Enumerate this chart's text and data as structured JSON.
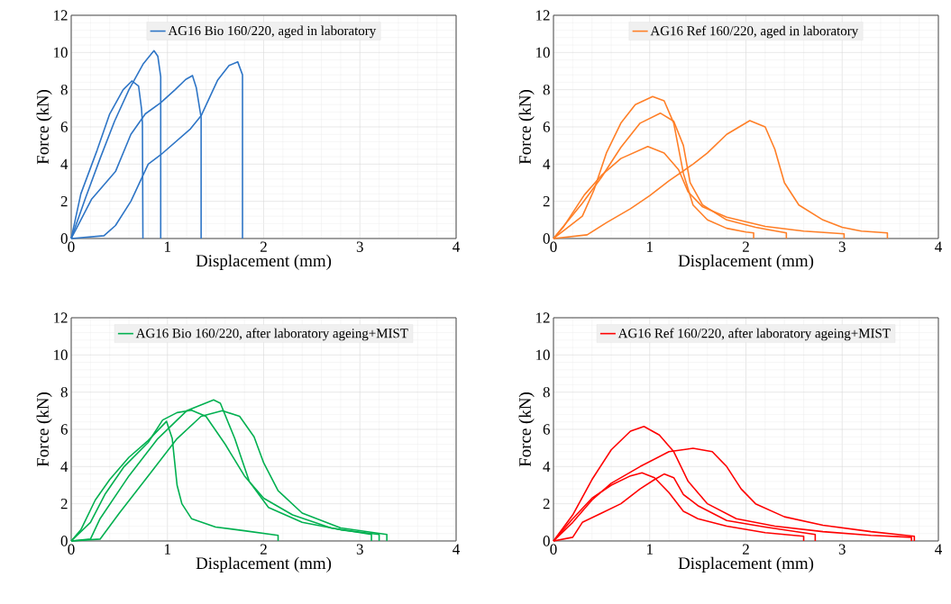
{
  "chart_data": [
    {
      "type": "line",
      "xlabel": "Displacement (mm)",
      "ylabel": "Force (kN)",
      "xlim": [
        0,
        4
      ],
      "ylim": [
        0,
        12
      ],
      "xticks": [
        0,
        1,
        2,
        3,
        4
      ],
      "yticks": [
        0,
        2,
        4,
        6,
        8,
        10,
        12
      ],
      "grid": true,
      "legend": "top",
      "line_style": "solid",
      "series": [
        {
          "name": "AG16 Bio 160/220, aged in laboratory",
          "color": "#2e75c6",
          "x": [
            0,
            0.15,
            0.3,
            0.45,
            0.6,
            0.75,
            0.86,
            0.9,
            0.93,
            0.93
          ],
          "values": [
            0,
            2.2,
            4.3,
            6.3,
            8.0,
            9.4,
            10.1,
            9.8,
            8.7,
            0
          ]
        },
        {
          "color": "#2e75c6",
          "x": [
            0,
            0.1,
            0.27,
            0.4,
            0.54,
            0.63,
            0.7,
            0.73,
            0.74,
            0.745
          ],
          "values": [
            0,
            2.4,
            4.76,
            6.7,
            8.0,
            8.47,
            8.2,
            7.0,
            6.2,
            0
          ]
        },
        {
          "color": "#2e75c6",
          "x": [
            0,
            0.21,
            0.46,
            0.62,
            0.77,
            0.93,
            1.08,
            1.19,
            1.26,
            1.3,
            1.35,
            1.35
          ],
          "values": [
            0,
            2.1,
            3.6,
            5.6,
            6.7,
            7.3,
            8.0,
            8.55,
            8.76,
            8.1,
            6.5,
            0
          ]
        },
        {
          "color": "#2e75c6",
          "x": [
            0,
            0.34,
            0.46,
            0.62,
            0.8,
            0.93,
            1.24,
            1.35,
            1.52,
            1.64,
            1.73,
            1.78,
            1.78
          ],
          "values": [
            0,
            0.15,
            0.7,
            2.0,
            4.0,
            4.5,
            5.9,
            6.6,
            8.5,
            9.3,
            9.5,
            8.8,
            0
          ]
        }
      ]
    },
    {
      "type": "line",
      "xlabel": "Displacement (mm)",
      "ylabel": "Force (kN)",
      "xlim": [
        0,
        4
      ],
      "ylim": [
        0,
        12
      ],
      "xticks": [
        0,
        1,
        2,
        3,
        4
      ],
      "yticks": [
        0,
        2,
        4,
        6,
        8,
        10,
        12
      ],
      "grid": true,
      "legend": "top",
      "line_style": "solid",
      "series": [
        {
          "name": "AG16 Ref 160/220, aged in laboratory",
          "color": "#ff7f27",
          "x": [
            0,
            0.3,
            0.42,
            0.55,
            0.7,
            0.85,
            1.03,
            1.15,
            1.25,
            1.35,
            1.45,
            1.6,
            1.8,
            2.0,
            2.08,
            2.08
          ],
          "values": [
            0,
            1.2,
            2.6,
            4.6,
            6.2,
            7.2,
            7.63,
            7.4,
            6.2,
            3.5,
            1.8,
            1.0,
            0.55,
            0.35,
            0.3,
            0
          ]
        },
        {
          "color": "#ff7f27",
          "x": [
            0,
            0.3,
            0.5,
            0.7,
            0.9,
            1.11,
            1.25,
            1.35,
            1.42,
            1.55,
            1.8,
            2.1,
            2.42,
            2.42
          ],
          "values": [
            0,
            1.9,
            3.3,
            4.9,
            6.2,
            6.74,
            6.3,
            5.0,
            3.0,
            1.8,
            1.0,
            0.6,
            0.3,
            0
          ]
        },
        {
          "color": "#ff7f27",
          "x": [
            0,
            0.1,
            0.32,
            0.5,
            0.7,
            0.98,
            1.15,
            1.3,
            1.4,
            1.55,
            1.8,
            2.2,
            2.6,
            3.02,
            3.02
          ],
          "values": [
            0,
            0.6,
            2.34,
            3.4,
            4.3,
            4.95,
            4.6,
            3.7,
            2.5,
            1.7,
            1.15,
            0.65,
            0.4,
            0.25,
            0
          ]
        },
        {
          "color": "#ff7f27",
          "x": [
            0,
            0.35,
            0.55,
            0.8,
            1.0,
            1.2,
            1.45,
            1.6,
            1.8,
            2.04,
            2.2,
            2.3,
            2.4,
            2.55,
            2.8,
            3.0,
            3.2,
            3.47,
            3.47
          ],
          "values": [
            0,
            0.2,
            0.85,
            1.6,
            2.3,
            3.1,
            4.0,
            4.6,
            5.6,
            6.34,
            6.0,
            4.8,
            3.0,
            1.8,
            1.0,
            0.6,
            0.4,
            0.3,
            0
          ]
        }
      ]
    },
    {
      "type": "line",
      "xlabel": "Displacement (mm)",
      "ylabel": "Force (kN)",
      "xlim": [
        0,
        4
      ],
      "ylim": [
        0,
        12
      ],
      "xticks": [
        0,
        1,
        2,
        3,
        4
      ],
      "yticks": [
        0,
        2,
        4,
        6,
        8,
        10,
        12
      ],
      "grid": true,
      "legend": "top",
      "line_style": "solid",
      "series": [
        {
          "name": "AG16 Bio 160/220, after laboratory ageing+MIST",
          "color": "#00b050",
          "x": [
            0,
            0.1,
            0.25,
            0.4,
            0.6,
            0.8,
            0.99,
            1.05,
            1.1,
            1.15,
            1.25,
            1.5,
            1.8,
            2.15,
            2.15
          ],
          "values": [
            0,
            0.6,
            2.2,
            3.3,
            4.5,
            5.4,
            6.43,
            5.5,
            3.0,
            2.0,
            1.2,
            0.75,
            0.55,
            0.3,
            0
          ]
        },
        {
          "color": "#00b050",
          "x": [
            0,
            0.2,
            0.35,
            0.55,
            0.8,
            0.95,
            1.1,
            1.25,
            1.4,
            1.6,
            1.8,
            2.0,
            2.3,
            2.7,
            3.12,
            3.12
          ],
          "values": [
            0,
            1.0,
            2.5,
            4.0,
            5.3,
            6.5,
            6.9,
            7.03,
            6.7,
            5.2,
            3.5,
            2.3,
            1.4,
            0.7,
            0.35,
            0
          ]
        },
        {
          "color": "#00b050",
          "x": [
            0,
            0.2,
            0.3,
            0.6,
            0.9,
            1.2,
            1.48,
            1.55,
            1.7,
            1.85,
            2.05,
            2.4,
            2.8,
            3.2,
            3.2
          ],
          "values": [
            0,
            0.1,
            1.2,
            3.5,
            5.5,
            7.0,
            7.58,
            7.4,
            5.5,
            3.2,
            1.8,
            1.0,
            0.6,
            0.35,
            0
          ]
        },
        {
          "color": "#00b050",
          "x": [
            0,
            0.3,
            0.5,
            0.8,
            1.1,
            1.35,
            1.57,
            1.75,
            1.9,
            2.0,
            2.15,
            2.4,
            2.8,
            3.28,
            3.28
          ],
          "values": [
            0,
            0.1,
            1.5,
            3.5,
            5.5,
            6.7,
            7.0,
            6.7,
            5.6,
            4.2,
            2.7,
            1.5,
            0.7,
            0.35,
            0
          ]
        }
      ]
    },
    {
      "type": "line",
      "xlabel": "Displacement (mm)",
      "ylabel": "Force (kN)",
      "xlim": [
        0,
        4
      ],
      "ylim": [
        0,
        12
      ],
      "xticks": [
        0,
        1,
        2,
        3,
        4
      ],
      "yticks": [
        0,
        2,
        4,
        6,
        8,
        10,
        12
      ],
      "grid": true,
      "legend": "top",
      "line_style": "solid",
      "series": [
        {
          "name": "AG16 Ref 160/220, after laboratory ageing+MIST",
          "color": "#ff0000",
          "x": [
            0,
            0.2,
            0.4,
            0.6,
            0.8,
            0.94,
            1.1,
            1.25,
            1.4,
            1.6,
            1.9,
            2.3,
            2.8,
            3.3,
            3.72,
            3.72
          ],
          "values": [
            0,
            1.4,
            3.3,
            4.9,
            5.9,
            6.16,
            5.7,
            4.8,
            3.2,
            2.0,
            1.2,
            0.8,
            0.5,
            0.3,
            0.2,
            0
          ]
        },
        {
          "color": "#ff0000",
          "x": [
            0,
            0.2,
            0.4,
            0.6,
            0.9,
            1.2,
            1.45,
            1.65,
            1.8,
            1.95,
            2.1,
            2.4,
            2.8,
            3.3,
            3.75,
            3.75
          ],
          "values": [
            0,
            1.0,
            2.2,
            3.1,
            4.0,
            4.8,
            4.98,
            4.8,
            4.0,
            2.8,
            2.0,
            1.3,
            0.85,
            0.5,
            0.25,
            0
          ]
        },
        {
          "color": "#ff0000",
          "x": [
            0,
            0.2,
            0.4,
            0.6,
            0.8,
            0.92,
            1.05,
            1.2,
            1.35,
            1.5,
            1.8,
            2.2,
            2.6,
            2.6
          ],
          "values": [
            0,
            1.2,
            2.3,
            3.0,
            3.5,
            3.66,
            3.4,
            2.6,
            1.6,
            1.2,
            0.8,
            0.45,
            0.25,
            0
          ]
        },
        {
          "color": "#ff0000",
          "x": [
            0,
            0.2,
            0.3,
            0.5,
            0.7,
            0.9,
            1.05,
            1.15,
            1.25,
            1.35,
            1.5,
            1.8,
            2.2,
            2.72,
            2.72
          ],
          "values": [
            0,
            0.2,
            1.0,
            1.5,
            2.0,
            2.8,
            3.3,
            3.6,
            3.4,
            2.5,
            1.9,
            1.1,
            0.75,
            0.35,
            0
          ]
        }
      ]
    }
  ]
}
